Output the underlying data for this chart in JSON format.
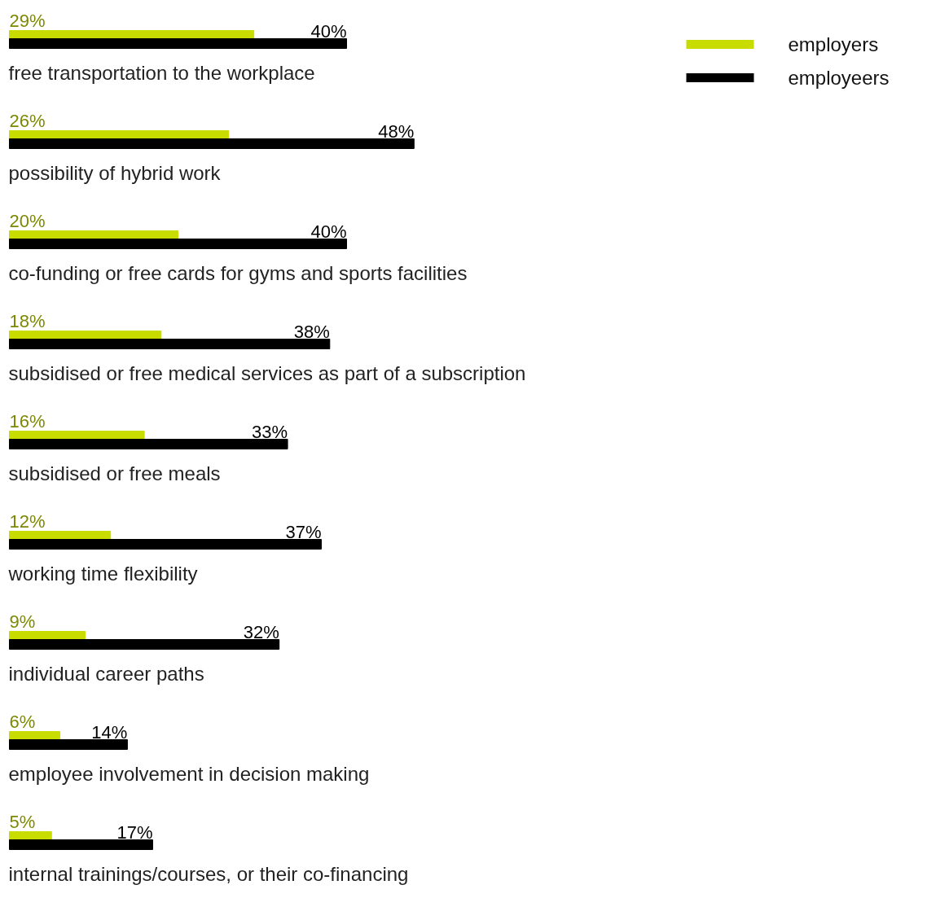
{
  "chart_data": {
    "type": "bar",
    "orientation": "horizontal",
    "legend": "top right",
    "categories": [
      "free transportation to the workplace",
      "possibility of hybrid work",
      "co-funding or free cards for gyms and sports facilities",
      "subsidised or free medical services as part of a subscription",
      "subsidised or free meals",
      "working time flexibility",
      "individual career paths",
      "employee involvement in decision making",
      "internal trainings/courses, or their co-financing"
    ],
    "series": [
      {
        "name": "employers",
        "color": "#c8dc00",
        "values": [
          29,
          26,
          20,
          18,
          16,
          12,
          9,
          6,
          5
        ],
        "value_labels": [
          "29%",
          "26%",
          "20%",
          "18%",
          "16%",
          "12%",
          "9%",
          "6%",
          "5%"
        ]
      },
      {
        "name": "employeers",
        "color": "#000000",
        "values": [
          40,
          48,
          40,
          38,
          33,
          37,
          32,
          14,
          17
        ],
        "value_labels": [
          "40%",
          "48%",
          "40%",
          "38%",
          "33%",
          "37%",
          "32%",
          "14%",
          "17%"
        ]
      }
    ]
  }
}
